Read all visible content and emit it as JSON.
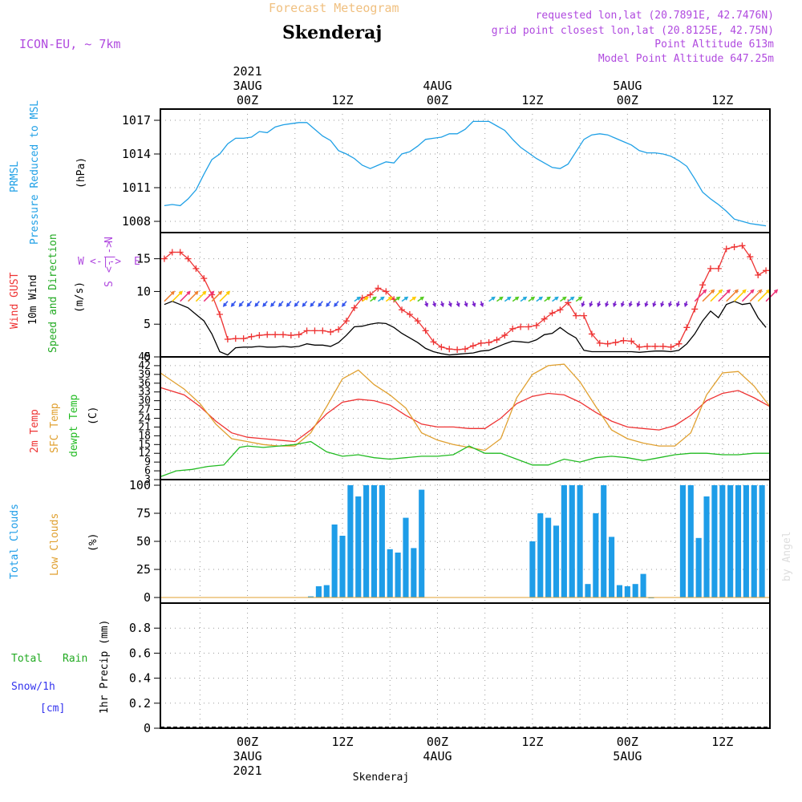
{
  "header": {
    "forecast_label": "Forecast Meteogram",
    "station": "Skenderaj",
    "model": "ICON-EU, ~ 7km",
    "requested": "requested lon,lat (20.7891E, 42.7476N)",
    "grid_point": "grid point closest lon,lat (20.8125E, 42.75N)",
    "point_altitude": "Point Altitude 613m",
    "model_altitude": "Model Point Altitude 647.25m"
  },
  "time_axis": {
    "top": [
      {
        "hour": 0,
        "lines": [
          "2021",
          "3AUG",
          "00Z"
        ]
      },
      {
        "hour": 12,
        "lines": [
          "12Z"
        ]
      },
      {
        "hour": 24,
        "lines": [
          "4AUG",
          "00Z"
        ]
      },
      {
        "hour": 36,
        "lines": [
          "12Z"
        ]
      },
      {
        "hour": 48,
        "lines": [
          "5AUG",
          "00Z"
        ]
      },
      {
        "hour": 60,
        "lines": [
          "12Z"
        ]
      }
    ],
    "bottom": [
      {
        "hour": 0,
        "lines": [
          "00Z",
          "3AUG",
          "2021"
        ]
      },
      {
        "hour": 12,
        "lines": [
          "12Z"
        ]
      },
      {
        "hour": 24,
        "lines": [
          "00Z",
          "4AUG"
        ]
      },
      {
        "hour": 36,
        "lines": [
          "12Z"
        ]
      },
      {
        "hour": 48,
        "lines": [
          "00Z",
          "5AUG"
        ]
      },
      {
        "hour": 60,
        "lines": [
          "12Z"
        ]
      }
    ],
    "footer": "Skenderaj"
  },
  "watermark": "by Angel",
  "colors": {
    "pressure": "#1fa0e6",
    "gust": "#ee3333",
    "wind": "#000000",
    "direction_label": "#22aa22",
    "temp": "#ee3333",
    "sfc": "#e0a030",
    "dew": "#22bb22",
    "cloud": "#1e9de8",
    "low_cloud": "#e0a030",
    "rain": "#22aa22",
    "snow": "#3333ee",
    "header_violet": "#b04adf",
    "header_orange": "#f0c080"
  },
  "panel_labels": {
    "pressure": [
      "PRMSL",
      "Pressure Reduced to MSL",
      "(hPa)"
    ],
    "wind": [
      "Wind GUST",
      "10m Wind",
      "Speed and Direction",
      "(m/s)"
    ],
    "compass": {
      "n": "N",
      "s": "S",
      "w": "W",
      "e": "E",
      "axis_h": "<-|->",
      "axis_v": "<-|->"
    },
    "temp": [
      "2m Temp",
      "SFC Temp",
      "dewpt Temp",
      "(C)"
    ],
    "cloud": [
      "Total Clouds",
      "Low Clouds",
      "(%)"
    ],
    "precip": [
      "Total",
      "Rain",
      "Snow/1h",
      "[cm]",
      "1hr Precip (mm)"
    ]
  },
  "chart_data": [
    {
      "type": "line",
      "title": "PRMSL Pressure Reduced to MSL",
      "ylabel": "(hPa)",
      "x_range_hours": [
        -11,
        66
      ],
      "ylim": [
        1007,
        1018
      ],
      "yticks": [
        1008,
        1011,
        1014,
        1017
      ],
      "series": [
        {
          "name": "PRMSL",
          "color": "#1fa0e6",
          "x": [
            -10.5,
            -9.5,
            -8.5,
            -7.5,
            -6.5,
            -5.5,
            -4.5,
            -3.5,
            -2.5,
            -1.5,
            -0.5,
            0.5,
            1.5,
            2.5,
            3.5,
            4.5,
            5.5,
            6.5,
            7.5,
            8.5,
            9.5,
            10.5,
            11.5,
            12.5,
            13.5,
            14.5,
            15.5,
            16.5,
            17.5,
            18.5,
            19.5,
            20.5,
            21.5,
            22.5,
            23.5,
            24.5,
            25.5,
            26.5,
            27.5,
            28.5,
            29.5,
            30.5,
            31.5,
            32.5,
            33.5,
            34.5,
            35.5,
            36.5,
            37.5,
            38.5,
            39.5,
            40.5,
            41.5,
            42.5,
            43.5,
            44.5,
            45.5,
            46.5,
            47.5,
            48.5,
            49.5,
            50.5,
            51.5,
            52.5,
            53.5,
            54.5,
            55.5,
            56.5,
            57.5,
            58.5,
            59.5,
            60.5,
            61.5,
            62.5,
            63.5,
            64.5,
            65.5
          ],
          "values": [
            1009.4,
            1009.5,
            1009.4,
            1010.0,
            1010.8,
            1012.2,
            1013.5,
            1014.0,
            1014.9,
            1015.4,
            1015.4,
            1015.5,
            1016.0,
            1015.9,
            1016.4,
            1016.6,
            1016.7,
            1016.8,
            1016.8,
            1016.2,
            1015.6,
            1015.2,
            1014.3,
            1014.0,
            1013.6,
            1013.0,
            1012.7,
            1013.0,
            1013.3,
            1013.2,
            1014.0,
            1014.2,
            1014.7,
            1015.3,
            1015.4,
            1015.5,
            1015.8,
            1015.8,
            1016.2,
            1016.9,
            1016.9,
            1016.9,
            1016.5,
            1016.1,
            1015.3,
            1014.6,
            1014.1,
            1013.6,
            1013.2,
            1012.8,
            1012.7,
            1013.1,
            1014.2,
            1015.3,
            1015.7,
            1015.8,
            1015.7,
            1015.4,
            1015.1,
            1014.8,
            1014.3,
            1014.1,
            1014.1,
            1014.0,
            1013.8,
            1013.4,
            1012.9,
            1011.8,
            1010.6,
            1010.0,
            1009.5,
            1008.9,
            1008.2,
            1008.0,
            1007.8,
            1007.7,
            1007.6
          ]
        }
      ]
    },
    {
      "type": "line",
      "title": "Wind GUST / 10m Wind Speed and Direction",
      "ylabel": "(m/s)",
      "x_range_hours": [
        -11,
        66
      ],
      "ylim": [
        0,
        19
      ],
      "yticks": [
        0,
        5,
        10,
        15
      ],
      "series": [
        {
          "name": "Wind GUST",
          "color": "#ee3333",
          "marker": "+",
          "x": [
            -10.5,
            -9.5,
            -8.5,
            -7.5,
            -6.5,
            -5.5,
            -4.5,
            -3.5,
            -2.5,
            -1.5,
            -0.5,
            0.5,
            1.5,
            2.5,
            3.5,
            4.5,
            5.5,
            6.5,
            7.5,
            8.5,
            9.5,
            10.5,
            11.5,
            12.5,
            13.5,
            14.5,
            15.5,
            16.5,
            17.5,
            18.5,
            19.5,
            20.5,
            21.5,
            22.5,
            23.5,
            24.5,
            25.5,
            26.5,
            27.5,
            28.5,
            29.5,
            30.5,
            31.5,
            32.5,
            33.5,
            34.5,
            35.5,
            36.5,
            37.5,
            38.5,
            39.5,
            40.5,
            41.5,
            42.5,
            43.5,
            44.5,
            45.5,
            46.5,
            47.5,
            48.5,
            49.5,
            50.5,
            51.5,
            52.5,
            53.5,
            54.5,
            55.5,
            56.5,
            57.5,
            58.5,
            59.5,
            60.5,
            61.5,
            62.5,
            63.5,
            64.5,
            65.5
          ],
          "values": [
            15.0,
            16.0,
            16.0,
            15.0,
            13.5,
            12.0,
            9.5,
            6.5,
            2.7,
            2.8,
            2.8,
            3.1,
            3.3,
            3.4,
            3.4,
            3.4,
            3.3,
            3.4,
            4.0,
            4.0,
            4.0,
            3.8,
            4.2,
            5.5,
            7.5,
            9.0,
            9.5,
            10.5,
            10.0,
            8.8,
            7.2,
            6.5,
            5.5,
            4.0,
            2.3,
            1.5,
            1.2,
            1.1,
            1.2,
            1.7,
            2.1,
            2.2,
            2.6,
            3.3,
            4.3,
            4.6,
            4.6,
            4.8,
            5.8,
            6.7,
            7.2,
            8.3,
            6.3,
            6.3,
            3.5,
            2.1,
            2.0,
            2.2,
            2.5,
            2.4,
            1.5,
            1.6,
            1.6,
            1.6,
            1.5,
            2.0,
            4.5,
            7.3,
            11.0,
            13.5,
            13.5,
            16.5,
            16.8,
            17.0,
            15.3,
            12.5,
            13.2
          ]
        },
        {
          "name": "10m Wind",
          "color": "#000000",
          "x": [
            -10.5,
            -9.5,
            -8.5,
            -7.5,
            -6.5,
            -5.5,
            -4.5,
            -3.5,
            -2.5,
            -1.5,
            -0.5,
            0.5,
            1.5,
            2.5,
            3.5,
            4.5,
            5.5,
            6.5,
            7.5,
            8.5,
            9.5,
            10.5,
            11.5,
            12.5,
            13.5,
            14.5,
            15.5,
            16.5,
            17.5,
            18.5,
            19.5,
            20.5,
            21.5,
            22.5,
            23.5,
            24.5,
            25.5,
            26.5,
            27.5,
            28.5,
            29.5,
            30.5,
            31.5,
            32.5,
            33.5,
            34.5,
            35.5,
            36.5,
            37.5,
            38.5,
            39.5,
            40.5,
            41.5,
            42.5,
            43.5,
            44.5,
            45.5,
            46.5,
            47.5,
            48.5,
            49.5,
            50.5,
            51.5,
            52.5,
            53.5,
            54.5,
            55.5,
            56.5,
            57.5,
            58.5,
            59.5,
            60.5,
            61.5,
            62.5,
            63.5,
            64.5,
            65.5
          ],
          "values": [
            8.0,
            8.5,
            8.0,
            7.5,
            6.5,
            5.5,
            3.5,
            0.8,
            0.3,
            1.4,
            1.5,
            1.5,
            1.6,
            1.5,
            1.5,
            1.6,
            1.5,
            1.6,
            2.0,
            1.8,
            1.8,
            1.6,
            2.2,
            3.3,
            4.6,
            4.7,
            5.0,
            5.2,
            5.1,
            4.5,
            3.6,
            2.9,
            2.2,
            1.3,
            0.8,
            0.5,
            0.3,
            0.4,
            0.5,
            0.6,
            0.9,
            1.0,
            1.5,
            2.0,
            2.4,
            2.3,
            2.2,
            2.6,
            3.4,
            3.6,
            4.5,
            3.6,
            2.9,
            1.0,
            0.8,
            0.8,
            0.8,
            0.8,
            0.8,
            0.8,
            0.7,
            0.8,
            0.9,
            0.9,
            0.8,
            1.0,
            2.0,
            3.5,
            5.5,
            7.0,
            6.0,
            8.0,
            8.5,
            8.0,
            8.2,
            6.0,
            4.5
          ]
        }
      ],
      "direction_arrows": "wind direction vectors along the 10m wind baseline (colored by speed)"
    },
    {
      "type": "line",
      "title": "2m Temp / SFC Temp / dewpt Temp",
      "ylabel": "(C)",
      "x_range_hours": [
        -11,
        66
      ],
      "ylim": [
        3,
        45
      ],
      "yticks": [
        3,
        6,
        9,
        12,
        15,
        18,
        21,
        24,
        27,
        30,
        33,
        36,
        39,
        42,
        45
      ],
      "series": [
        {
          "name": "2m Temp",
          "color": "#ee3333",
          "x": [
            -11,
            -8,
            -6,
            -4,
            -2,
            0,
            2,
            4,
            6,
            8,
            10,
            12,
            14,
            16,
            18,
            20,
            22,
            24,
            26,
            28,
            30,
            32,
            34,
            36,
            38,
            40,
            42,
            44,
            46,
            48,
            50,
            52,
            54,
            56,
            58,
            60,
            62,
            64,
            66
          ],
          "values": [
            34.5,
            32.0,
            28.0,
            23.0,
            19.0,
            17.5,
            17.0,
            16.5,
            16.0,
            20.0,
            25.5,
            29.5,
            30.5,
            30.0,
            28.5,
            25.0,
            22.0,
            21.0,
            21.0,
            20.5,
            20.5,
            24.0,
            29.0,
            31.5,
            32.5,
            32.0,
            29.5,
            26.0,
            23.0,
            21.0,
            20.5,
            20.0,
            21.5,
            25.0,
            30.0,
            32.5,
            33.5,
            31.0,
            28.0
          ]
        },
        {
          "name": "SFC Temp",
          "color": "#e0a030",
          "x": [
            -11,
            -8,
            -6,
            -4,
            -2,
            0,
            2,
            4,
            6,
            8,
            10,
            12,
            14,
            16,
            18,
            20,
            22,
            24,
            26,
            28,
            30,
            32,
            34,
            36,
            38,
            40,
            42,
            44,
            46,
            48,
            50,
            52,
            54,
            56,
            58,
            60,
            62,
            64,
            66
          ],
          "values": [
            39.5,
            34.0,
            29.0,
            22.0,
            17.0,
            16.0,
            15.0,
            14.5,
            14.5,
            19.0,
            28.0,
            37.5,
            40.5,
            35.5,
            32.0,
            27.5,
            19.0,
            16.5,
            15.0,
            14.0,
            13.0,
            17.0,
            31.0,
            39.0,
            42.0,
            42.5,
            36.5,
            28.0,
            20.0,
            17.0,
            15.5,
            14.5,
            14.5,
            19.0,
            32.0,
            39.5,
            40.0,
            35.0,
            28.0
          ]
        },
        {
          "name": "dewpt Temp",
          "color": "#22bb22",
          "x": [
            -11,
            -9,
            -7,
            -5,
            -3,
            -1,
            0,
            2,
            4,
            6,
            8,
            10,
            12,
            14,
            16,
            18,
            20,
            22,
            24,
            26,
            28,
            30,
            32,
            34,
            36,
            38,
            40,
            42,
            44,
            46,
            48,
            50,
            52,
            54,
            56,
            58,
            60,
            62,
            64,
            66
          ],
          "values": [
            4.0,
            6.0,
            6.5,
            7.5,
            8.0,
            14.0,
            14.5,
            14.0,
            14.5,
            15.0,
            16.0,
            12.5,
            11.0,
            11.5,
            10.5,
            10.0,
            10.5,
            11.0,
            11.0,
            11.5,
            14.5,
            12.0,
            12.0,
            10.0,
            8.0,
            8.0,
            10.0,
            9.0,
            10.5,
            11.0,
            10.5,
            9.5,
            10.5,
            11.5,
            12.0,
            12.0,
            11.5,
            11.5,
            12.0,
            12.0
          ]
        }
      ]
    },
    {
      "type": "bar",
      "title": "Total Clouds / Low Clouds",
      "ylabel": "(%)",
      "x_range_hours": [
        -11,
        66
      ],
      "ylim": [
        -5,
        105
      ],
      "yticks": [
        0,
        25,
        50,
        75,
        100
      ],
      "series": [
        {
          "name": "Total Clouds",
          "color": "#1e9de8",
          "x": [
            8,
            9,
            10,
            11,
            12,
            13,
            14,
            15,
            16,
            17,
            18,
            19,
            20,
            21,
            22,
            36,
            37,
            38,
            39,
            40,
            41,
            42,
            43,
            44,
            45,
            46,
            47,
            48,
            49,
            50,
            51,
            55,
            56,
            57,
            58,
            59,
            60,
            61,
            62,
            63,
            64,
            65
          ],
          "values": [
            1,
            10,
            11,
            65,
            55,
            100,
            90,
            100,
            100,
            100,
            43,
            40,
            71,
            44,
            96,
            50,
            75,
            71,
            64,
            100,
            100,
            100,
            12,
            75,
            100,
            54,
            11,
            10,
            12,
            21,
            0,
            100,
            100,
            53,
            90,
            100,
            100,
            100,
            100,
            100,
            100,
            100
          ]
        }
      ]
    },
    {
      "type": "line",
      "title": "1hr Precip (mm)",
      "ylabel": "1hr Precip (mm)",
      "x_range_hours": [
        -11,
        66
      ],
      "ylim": [
        0,
        1.0
      ],
      "yticks": [
        0,
        0.2,
        0.4,
        0.6,
        0.8
      ],
      "ytick_labels": [
        "0",
        "0.2",
        "0.4",
        "0.6",
        "0.8"
      ],
      "series": [
        {
          "name": "Total Rain",
          "color": "#22aa22",
          "x": [
            -11,
            66
          ],
          "values": [
            0,
            0
          ]
        }
      ]
    }
  ]
}
